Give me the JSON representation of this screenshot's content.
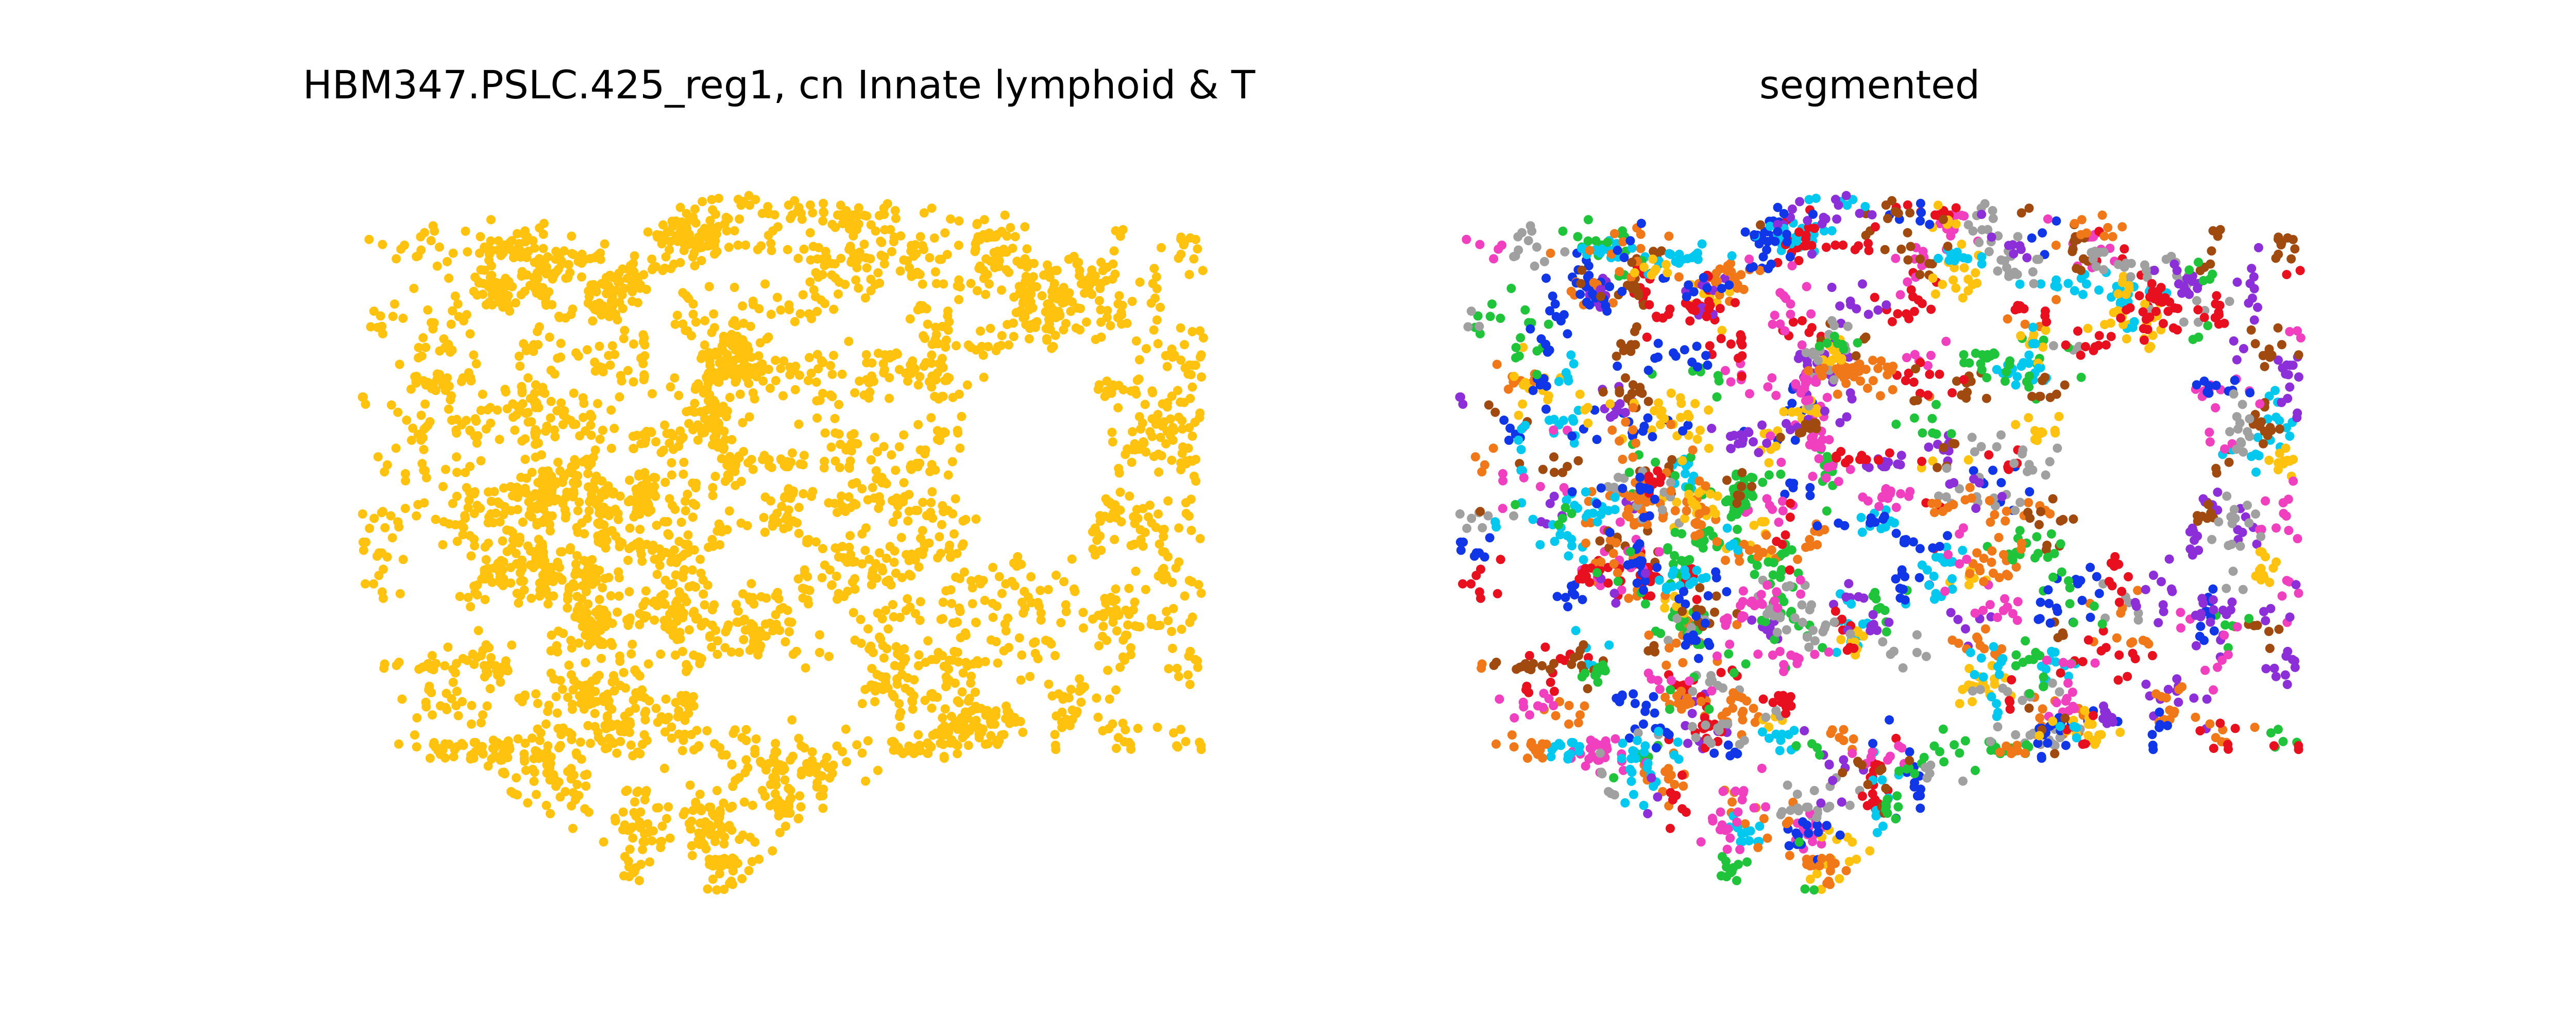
{
  "figure": {
    "panels": [
      {
        "title": "HBM347.PSLC.425_reg1, cn Innate lymphoid & T"
      },
      {
        "title": "segmented"
      }
    ]
  },
  "chart_data": [
    {
      "type": "scatter",
      "title": "HBM347.PSLC.425_reg1, cn Innate lymphoid & T",
      "xlabel": "",
      "ylabel": "",
      "axes_visible": false,
      "grid": false,
      "legend": "none",
      "color": "#ffc20e",
      "point_count_approx": 4000,
      "note_units": "spatial cell coordinates, unlabeled axes",
      "x": [
        0,
        1
      ],
      "y": [
        0,
        1
      ]
    },
    {
      "type": "scatter",
      "title": "segmented",
      "xlabel": "",
      "ylabel": "",
      "axes_visible": false,
      "grid": false,
      "legend": "none",
      "segment_colors": [
        "#1036e8",
        "#8c2fd8",
        "#e8101e",
        "#1fc43a",
        "#f03fbf",
        "#00c8ee",
        "#ffc20e",
        "#f07818",
        "#a04a10",
        "#a0a0a0"
      ]
    }
  ]
}
